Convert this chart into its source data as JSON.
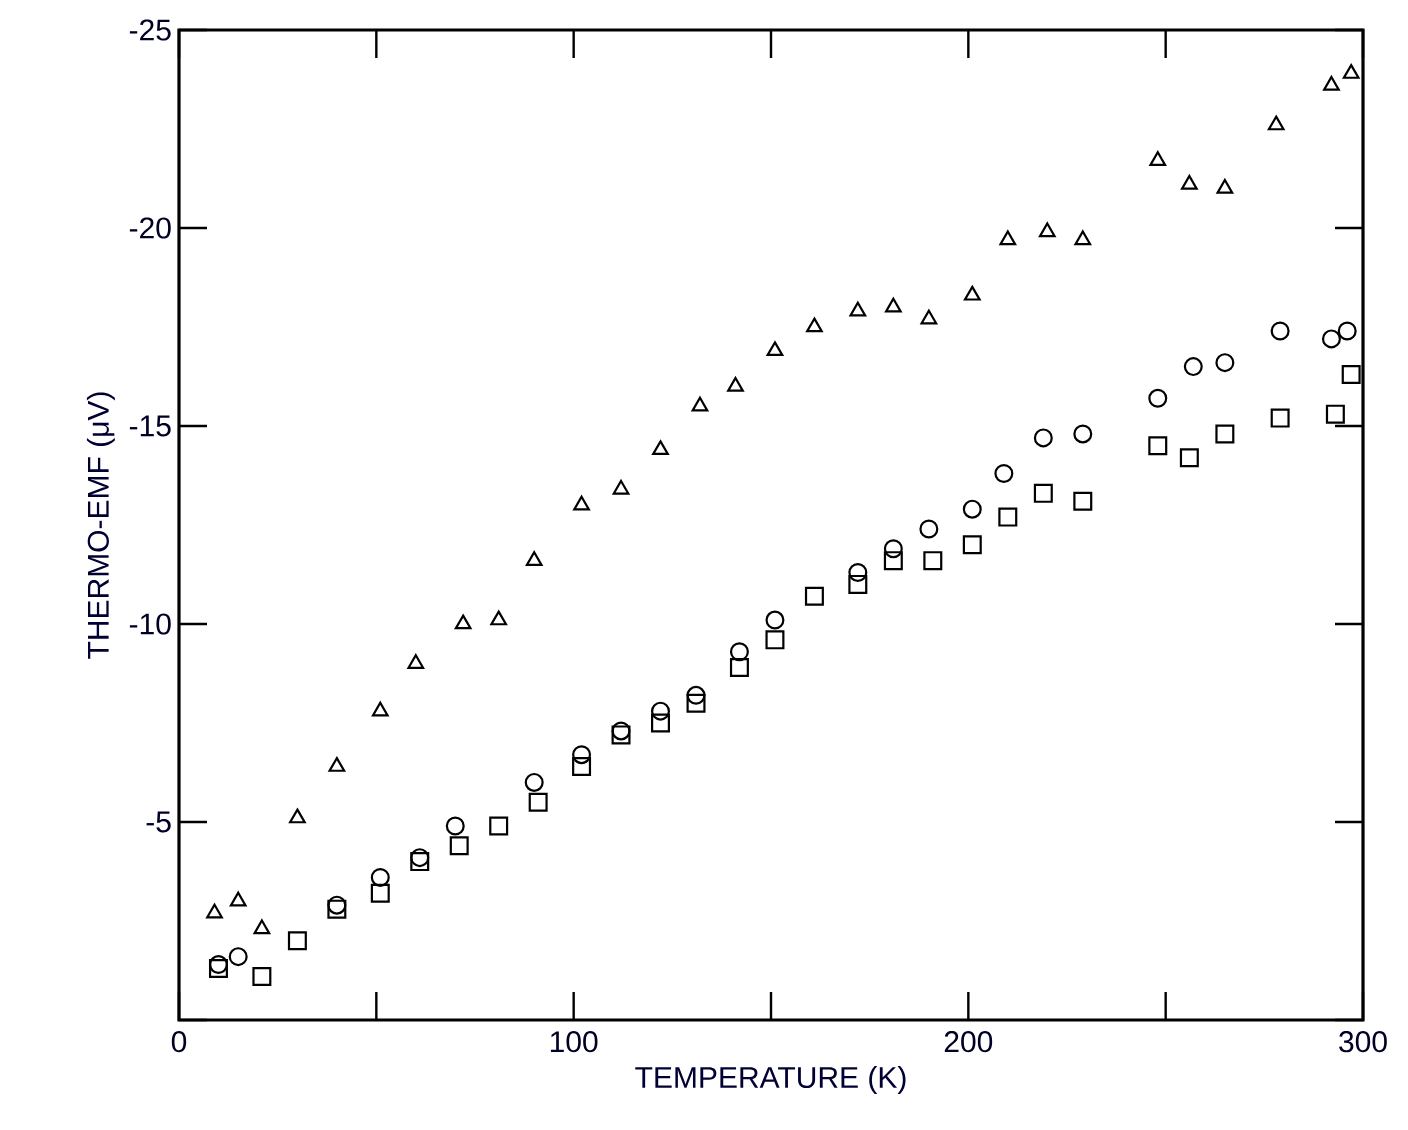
{
  "chart_data": {
    "type": "scatter",
    "xlabel": "TEMPERATURE (K)",
    "ylabel": "THERMO-EMF (μV)",
    "xlim": [
      0,
      300
    ],
    "ylim": [
      0,
      -25
    ],
    "xticks": [
      0,
      {
        "value": 50,
        "label": null
      },
      100,
      {
        "value": 150,
        "label": null
      },
      200,
      {
        "value": 250,
        "label": null
      },
      300
    ],
    "yticks": [
      {
        "value": 0,
        "label": null
      },
      -5,
      -10,
      -15,
      -20,
      -25
    ],
    "series": [
      {
        "color": "#000000",
        "marker": "triangle",
        "x": [
          9,
          15,
          21,
          30,
          40,
          51,
          60,
          72,
          81,
          90,
          102,
          112,
          122,
          132,
          141,
          151,
          161,
          172,
          181,
          190,
          201,
          210,
          220,
          229,
          248,
          256,
          265,
          278,
          292,
          297
        ],
        "values": [
          -2.7,
          -3.0,
          -2.3,
          -5.1,
          -6.4,
          -7.8,
          -9.0,
          -10.0,
          -10.1,
          -11.6,
          -13.0,
          -13.4,
          -14.4,
          -15.5,
          -16.0,
          -16.9,
          -17.5,
          -17.9,
          -18.0,
          -17.7,
          -18.3,
          -19.7,
          -19.9,
          -19.7,
          -21.7,
          -21.1,
          -21.0,
          -22.6,
          -23.6,
          -23.9
        ]
      },
      {
        "color": "#000000",
        "marker": "circle",
        "x": [
          10,
          15,
          30,
          40,
          51,
          61,
          70,
          81,
          90,
          102,
          112,
          122,
          131,
          142,
          151,
          161,
          172,
          181,
          190,
          201,
          209,
          219,
          229,
          248,
          257,
          265,
          279,
          292,
          296
        ],
        "values": [
          -1.4,
          -1.6,
          null,
          -2.9,
          -3.6,
          -4.1,
          -4.9,
          null,
          -6.0,
          -6.7,
          -7.3,
          -7.8,
          -8.2,
          -9.3,
          -10.1,
          null,
          -11.3,
          -11.9,
          -12.4,
          -12.9,
          -13.8,
          -14.7,
          -14.8,
          -15.7,
          -16.5,
          -16.6,
          -17.4,
          -17.2,
          -17.4
        ]
      },
      {
        "color": "#000000",
        "marker": "square",
        "x": [
          10,
          21,
          30,
          40,
          51,
          61,
          71,
          81,
          91,
          102,
          112,
          122,
          131,
          142,
          151,
          161,
          172,
          181,
          191,
          201,
          210,
          219,
          229,
          248,
          256,
          265,
          279,
          293,
          297
        ],
        "values": [
          -1.3,
          -1.1,
          -2.0,
          -2.8,
          -3.2,
          -4.0,
          -4.4,
          -4.9,
          -5.5,
          -6.4,
          -7.2,
          -7.5,
          -8.0,
          -8.9,
          -9.6,
          -10.7,
          -11.0,
          -11.6,
          -11.6,
          -12.0,
          -12.7,
          -13.3,
          -13.1,
          -14.5,
          -14.2,
          -14.8,
          -15.2,
          -15.3,
          -16.3
        ]
      }
    ]
  }
}
